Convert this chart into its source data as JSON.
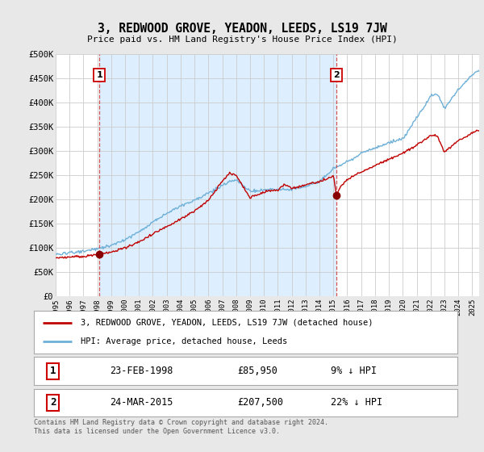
{
  "title": "3, REDWOOD GROVE, YEADON, LEEDS, LS19 7JW",
  "subtitle": "Price paid vs. HM Land Registry's House Price Index (HPI)",
  "ylabel_ticks": [
    "£0",
    "£50K",
    "£100K",
    "£150K",
    "£200K",
    "£250K",
    "£300K",
    "£350K",
    "£400K",
    "£450K",
    "£500K"
  ],
  "ytick_values": [
    0,
    50000,
    100000,
    150000,
    200000,
    250000,
    300000,
    350000,
    400000,
    450000,
    500000
  ],
  "ylim": [
    0,
    500000
  ],
  "xlim_start": 1995.0,
  "xlim_end": 2025.5,
  "sale1_x": 1998.15,
  "sale1_y": 85950,
  "sale1_label": "1",
  "sale1_date": "23-FEB-1998",
  "sale1_price": "£85,950",
  "sale1_hpi": "9% ↓ HPI",
  "sale2_x": 2015.22,
  "sale2_y": 207500,
  "sale2_label": "2",
  "sale2_date": "24-MAR-2015",
  "sale2_price": "£207,500",
  "sale2_hpi": "22% ↓ HPI",
  "property_line_color": "#c00000",
  "hpi_line_color": "#6eb0d8",
  "background_color": "#e8e8e8",
  "plot_bg_color": "#ffffff",
  "shade_color": "#ddeeff",
  "grid_color": "#cccccc",
  "legend_label_property": "3, REDWOOD GROVE, YEADON, LEEDS, LS19 7JW (detached house)",
  "legend_label_hpi": "HPI: Average price, detached house, Leeds",
  "footer": "Contains HM Land Registry data © Crown copyright and database right 2024.\nThis data is licensed under the Open Government Licence v3.0.",
  "sale_marker_color": "#880000",
  "sale_vline_color": "#cc4444"
}
